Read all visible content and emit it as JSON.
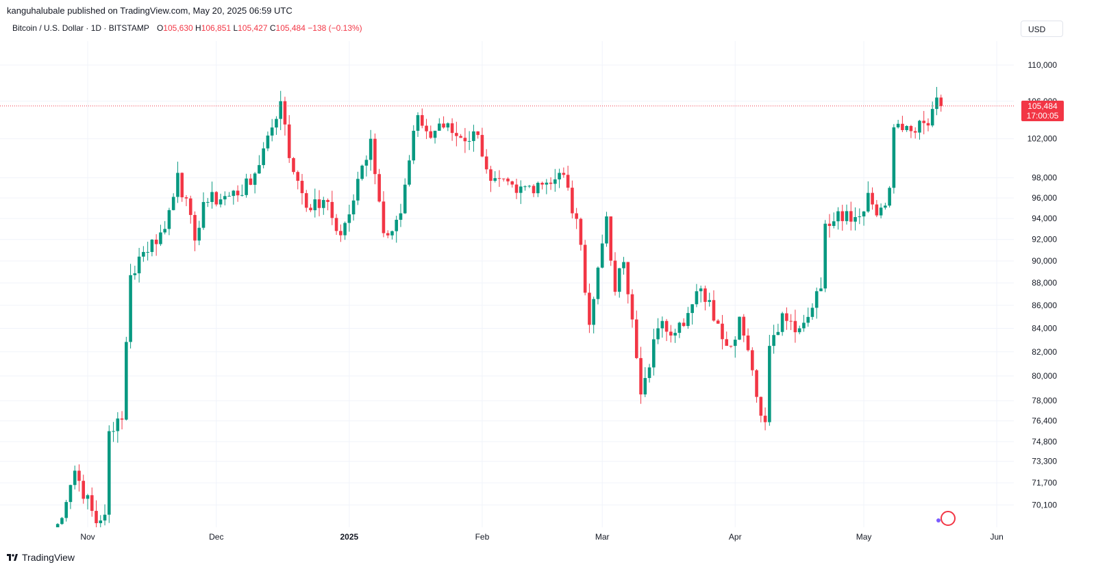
{
  "header": {
    "published": "kanguhalubale published on TradingView.com, May 20, 2025 06:59 UTC"
  },
  "legend": {
    "symbol": "Bitcoin / U.S. Dollar · 1D · BITSTAMP",
    "o_label": "O",
    "o": "105,630",
    "h_label": "H",
    "h": "106,851",
    "l_label": "L",
    "l": "105,427",
    "c_label": "C",
    "c": "105,484",
    "change": "−138 (−0.13%)"
  },
  "currency": "USD",
  "last_price": {
    "value": "105,484",
    "countdown": "17:00:05"
  },
  "footer": {
    "brand": "TradingView"
  },
  "colors": {
    "up": "#089981",
    "down": "#f23645",
    "grid": "#f0f3fa",
    "axis_text": "#131722"
  },
  "chart_data": {
    "type": "candlestick",
    "y_scale": "log",
    "ylim": [
      69000,
      113000
    ],
    "y_ticks": [
      110000,
      106000,
      102000,
      98000,
      96000,
      94000,
      92000,
      90000,
      88000,
      86000,
      84000,
      82000,
      80000,
      78000,
      76400,
      74800,
      73300,
      71700,
      70100
    ],
    "y_tick_labels": [
      "110,000",
      "106,000",
      "102,000",
      "98,000",
      "96,000",
      "94,000",
      "92,000",
      "90,000",
      "88,000",
      "86,000",
      "84,000",
      "82,000",
      "80,000",
      "78,000",
      "76,400",
      "74,800",
      "73,300",
      "71,700",
      "70,100"
    ],
    "x_labels": [
      {
        "label": "Nov",
        "date": "2024-11-01",
        "bold": false
      },
      {
        "label": "Dec",
        "date": "2024-12-01",
        "bold": false
      },
      {
        "label": "2025",
        "date": "2025-01-01",
        "bold": true
      },
      {
        "label": "Feb",
        "date": "2025-02-01",
        "bold": false
      },
      {
        "label": "Mar",
        "date": "2025-03-01",
        "bold": false
      },
      {
        "label": "Apr",
        "date": "2025-04-01",
        "bold": false
      },
      {
        "label": "May",
        "date": "2025-05-01",
        "bold": false
      },
      {
        "label": "Jun",
        "date": "2025-06-01",
        "bold": false
      }
    ],
    "last_value": 105484,
    "anchors": [
      [
        "2024-10-23",
        66700
      ],
      [
        "2024-10-29",
        72600
      ],
      [
        "2024-11-03",
        68800
      ],
      [
        "2024-11-05",
        69400
      ],
      [
        "2024-11-06",
        75600
      ],
      [
        "2024-11-09",
        76500
      ],
      [
        "2024-11-11",
        88700
      ],
      [
        "2024-11-13",
        90400
      ],
      [
        "2024-11-19",
        93000
      ],
      [
        "2024-11-22",
        98500
      ],
      [
        "2024-11-26",
        91900
      ],
      [
        "2024-11-28",
        95600
      ],
      [
        "2024-12-04",
        96200
      ],
      [
        "2024-12-09",
        97300
      ],
      [
        "2024-12-12",
        101000
      ],
      [
        "2024-12-16",
        106000
      ],
      [
        "2024-12-18",
        100000
      ],
      [
        "2024-12-20",
        97700
      ],
      [
        "2024-12-23",
        94800
      ],
      [
        "2024-12-26",
        95800
      ],
      [
        "2024-12-30",
        92400
      ],
      [
        "2025-01-01",
        94400
      ],
      [
        "2025-01-06",
        102000
      ],
      [
        "2025-01-09",
        92600
      ],
      [
        "2025-01-13",
        94500
      ],
      [
        "2025-01-17",
        104500
      ],
      [
        "2025-01-20",
        102100
      ],
      [
        "2025-01-22",
        103600
      ],
      [
        "2025-01-27",
        102100
      ],
      [
        "2025-01-31",
        102400
      ],
      [
        "2025-02-03",
        97700
      ],
      [
        "2025-02-09",
        96500
      ],
      [
        "2025-02-14",
        97500
      ],
      [
        "2025-02-20",
        98300
      ],
      [
        "2025-02-24",
        91500
      ],
      [
        "2025-02-26",
        84300
      ],
      [
        "2025-03-02",
        94200
      ],
      [
        "2025-03-04",
        87200
      ],
      [
        "2025-03-06",
        89900
      ],
      [
        "2025-03-10",
        78500
      ],
      [
        "2025-03-14",
        84000
      ],
      [
        "2025-03-20",
        84200
      ],
      [
        "2025-03-24",
        87500
      ],
      [
        "2025-03-28",
        84400
      ],
      [
        "2025-03-31",
        82500
      ],
      [
        "2025-04-02",
        85000
      ],
      [
        "2025-04-06",
        78300
      ],
      [
        "2025-04-08",
        76300
      ],
      [
        "2025-04-09",
        82500
      ],
      [
        "2025-04-12",
        85300
      ],
      [
        "2025-04-16",
        84000
      ],
      [
        "2025-04-21",
        87500
      ],
      [
        "2025-04-22",
        93500
      ],
      [
        "2025-04-25",
        94700
      ],
      [
        "2025-04-30",
        94200
      ],
      [
        "2025-05-02",
        96500
      ],
      [
        "2025-05-04",
        94300
      ],
      [
        "2025-05-07",
        97000
      ],
      [
        "2025-05-08",
        103200
      ],
      [
        "2025-05-12",
        102800
      ],
      [
        "2025-05-16",
        103400
      ],
      [
        "2025-05-18",
        106400
      ],
      [
        "2025-05-19",
        105484
      ]
    ]
  }
}
